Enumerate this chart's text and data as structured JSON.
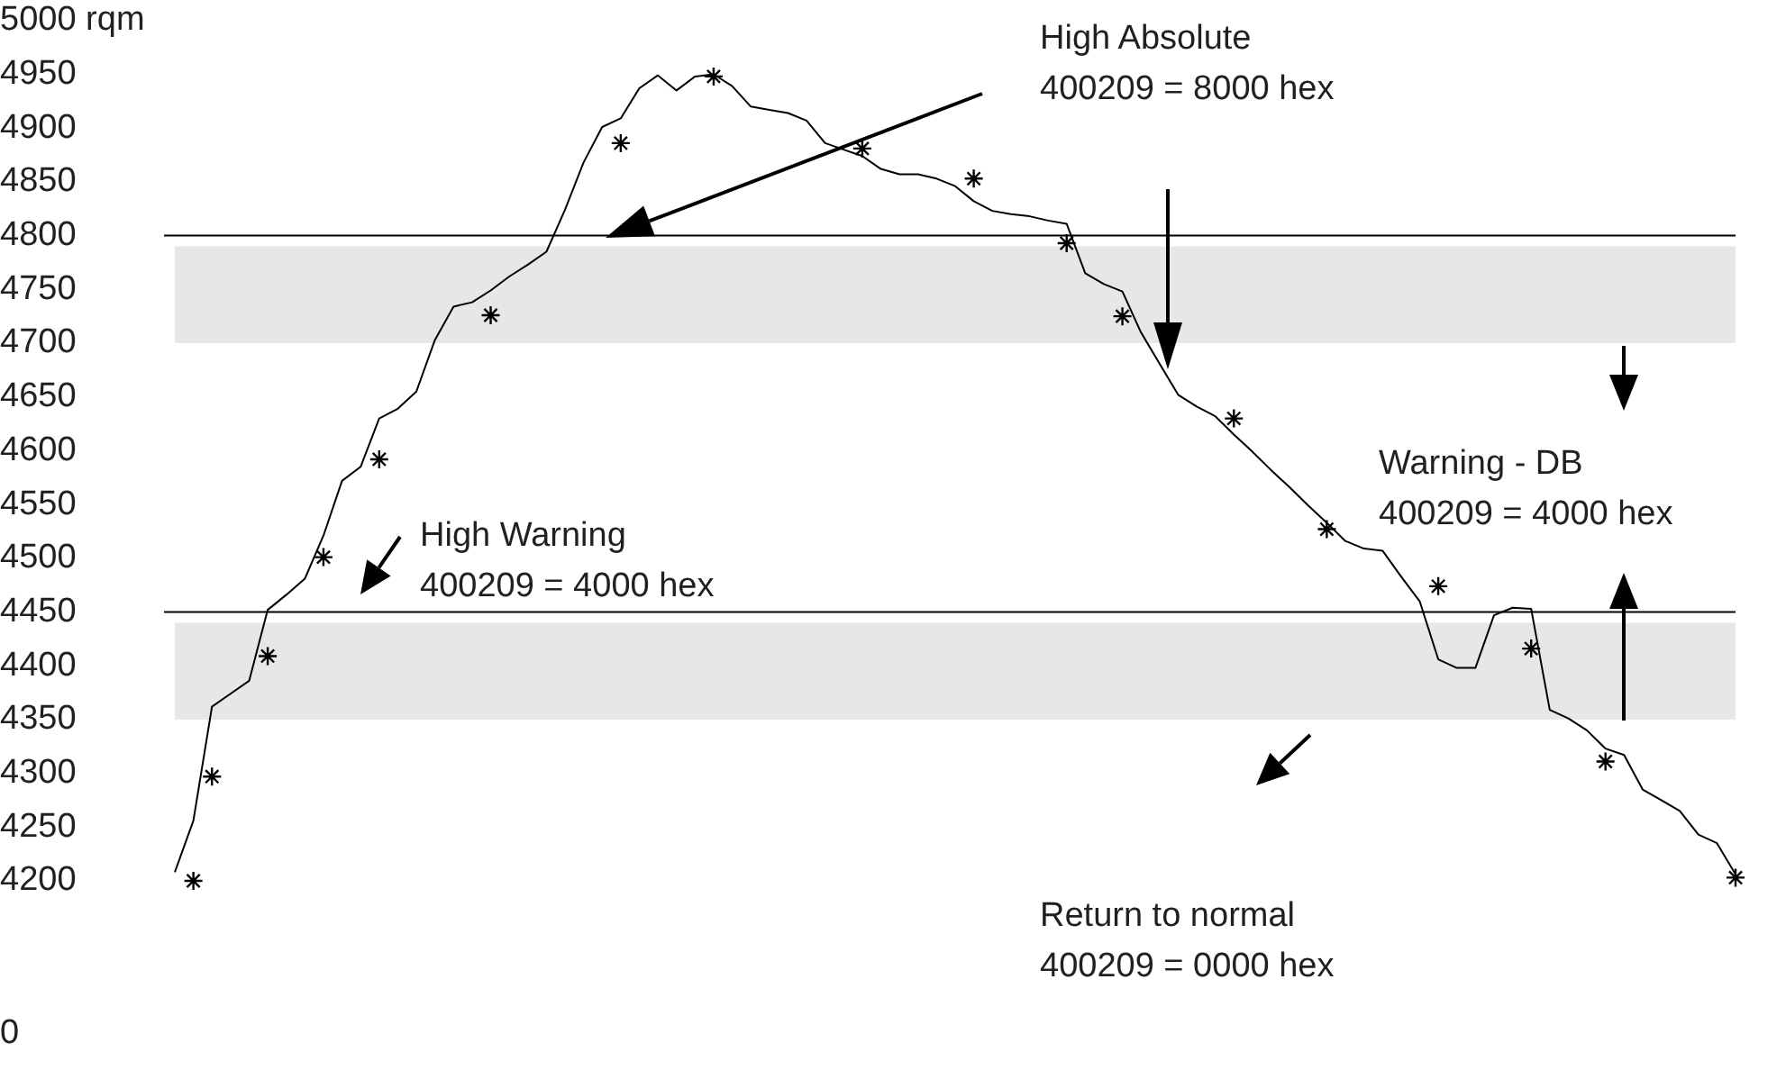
{
  "chart_data": {
    "type": "line",
    "categories": [
      null,
      null,
      null,
      null,
      null,
      null,
      null,
      null,
      null,
      null,
      null,
      null,
      null,
      null,
      null,
      null,
      null,
      null,
      null,
      null,
      null,
      null,
      null,
      null,
      null,
      null,
      null,
      null,
      null,
      null,
      null,
      null,
      null,
      null,
      null,
      null,
      null,
      null,
      null,
      null,
      null,
      null,
      null,
      null,
      null,
      null,
      null,
      null,
      null,
      null,
      null,
      null,
      null,
      null,
      null,
      null,
      null,
      null,
      null,
      null,
      null,
      null,
      null,
      null,
      null,
      null,
      null,
      null,
      null,
      null,
      null,
      null,
      null,
      null,
      null,
      null,
      null,
      null,
      null,
      null,
      null,
      null,
      null,
      null,
      null
    ],
    "series": [
      {
        "type": "line",
        "color": "#000000",
        "marker": "none",
        "values": [
          4208,
          4256,
          4362,
          4374,
          4386,
          4452,
          4466,
          4481,
          4521,
          4572,
          4585,
          4630,
          4639,
          4655,
          4703,
          4734,
          4738,
          4749,
          4762,
          4773,
          4785,
          4824,
          4868,
          4901,
          4909,
          4937,
          4949,
          4935,
          4948,
          4950,
          4939,
          4920,
          4917,
          4914,
          4907,
          4886,
          4880,
          4874,
          4862,
          4857,
          4857,
          4853,
          4846,
          4832,
          4823,
          4820,
          4818,
          4814,
          4811,
          4765,
          4755,
          4748,
          4710,
          4681,
          4652,
          4641,
          4632,
          4615,
          4599,
          4582,
          4566,
          4549,
          4533,
          4516,
          4509,
          4507,
          4483,
          4460,
          4406,
          4398,
          4398,
          4447,
          4454,
          4453,
          4359,
          4351,
          4340,
          4323,
          4317,
          4285,
          4275,
          4265,
          4243,
          4235,
          4206
        ]
      },
      {
        "type": "scatter",
        "color": "#000000",
        "marker": "cross",
        "values": [
          null,
          4200,
          4297,
          null,
          null,
          4409,
          null,
          null,
          4501,
          null,
          null,
          4592,
          null,
          null,
          null,
          null,
          null,
          4726,
          null,
          null,
          null,
          null,
          null,
          null,
          4886,
          null,
          null,
          null,
          null,
          4948,
          null,
          null,
          null,
          null,
          null,
          null,
          null,
          4881,
          null,
          null,
          null,
          null,
          null,
          4853,
          null,
          null,
          null,
          null,
          4793,
          null,
          null,
          4725,
          null,
          null,
          null,
          null,
          null,
          4630,
          null,
          null,
          null,
          null,
          4527,
          null,
          null,
          null,
          null,
          null,
          4474,
          null,
          null,
          null,
          null,
          4416,
          null,
          null,
          null,
          4311,
          null,
          null,
          null,
          null,
          null,
          null,
          4203
        ]
      }
    ],
    "ylim": [
      4200,
      5000
    ],
    "yticks": [
      {
        "value": 5000,
        "label": "5000 rqm"
      },
      4950,
      4900,
      4850,
      4800,
      4750,
      4700,
      4650,
      4600,
      4550,
      4500,
      4450,
      4400,
      4350,
      4300,
      4250,
      4200
    ],
    "tick_labels": "y",
    "grid": false,
    "legend": false,
    "ref_lines": [
      {
        "axis": "y",
        "value": 4800,
        "color": "#000000"
      },
      {
        "axis": "y",
        "value": 4450,
        "color": "#000000"
      }
    ],
    "bands": [
      {
        "axis": "y",
        "from": 4700,
        "to": 4790,
        "color": "#e6e7e7"
      },
      {
        "axis": "y",
        "from": 4350,
        "to": 4440,
        "color": "#e6e7e7"
      }
    ],
    "annotations": [
      "High Absolute\n400209 = 8000 hex",
      "High Warning\n400209 = 4000 hex",
      "Warning - DB\n400209 = 4000 hex",
      "Return to normal\n400209 = 0000 hex",
      "0"
    ]
  }
}
